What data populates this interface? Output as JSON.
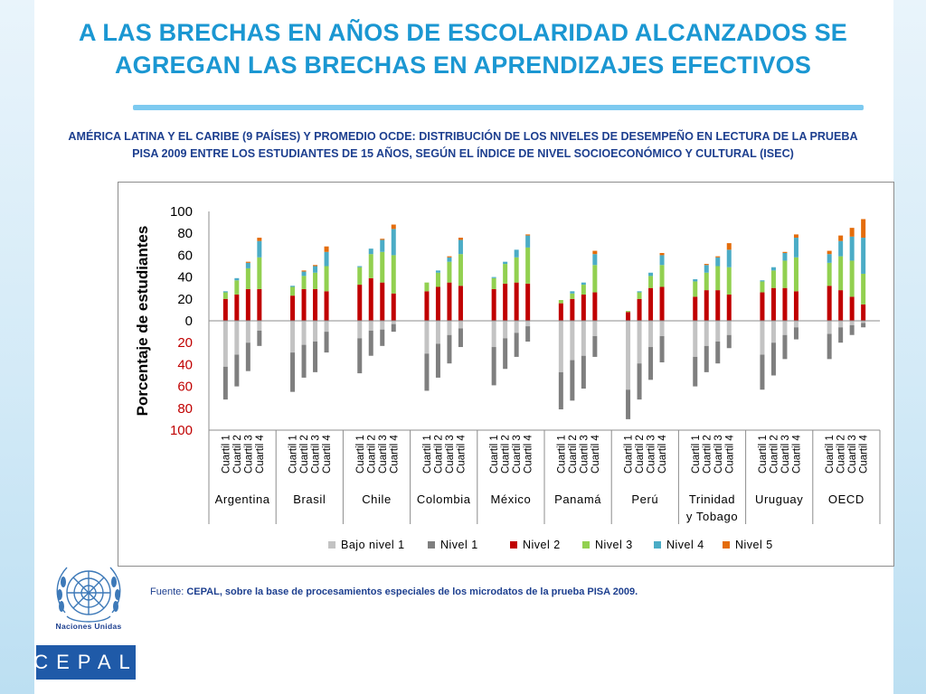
{
  "title_line1": "A LAS BRECHAS EN AÑOS DE ESCOLARIDAD ALCANZADOS SE",
  "title_line2": "AGREGAN LAS BRECHAS EN APRENDIZAJES EFECTIVOS",
  "subtitle_line1": "AMÉRICA LATINA Y EL CARIBE (9 PAÍSES) Y PROMEDIO OCDE: DISTRIBUCIÓN DE LOS NIVELES DE DESEMPEÑO EN LECTURA DE LA PRUEBA",
  "subtitle_line2": "PISA 2009 ENTRE LOS ESTUDIANTES DE 15 AÑOS, SEGÚN EL ÍNDICE DE NIVEL SOCIOECONÓMICO Y CULTURAL (ISEC)",
  "source_prefix": "Fuente: ",
  "source_text": "CEPAL, sobre la base de procesamientos especiales de los microdatos de la prueba PISA 2009.",
  "logos": {
    "un_label": "Naciones Unidas",
    "cepal_label": "CEPAL"
  },
  "chart_data": {
    "type": "bar",
    "stacked": true,
    "ylabel": "Porcentaje de estudiantes",
    "ylim": [
      -100,
      100
    ],
    "yticks": [
      100,
      80,
      60,
      40,
      20,
      0,
      20,
      40,
      60,
      80,
      100
    ],
    "quartile_labels": [
      "Cuartil 1",
      "Cuartil 2",
      "Cuartil 3",
      "Cuartil 4"
    ],
    "countries": [
      "Argentina",
      "Brasil",
      "Chile",
      "Colombia",
      "México",
      "Panamá",
      "Perú",
      "Trinidad y Tobago",
      "Uruguay",
      "OECD"
    ],
    "country_lines": [
      [
        "Argentina"
      ],
      [
        "Brasil"
      ],
      [
        "Chile"
      ],
      [
        "Colombia"
      ],
      [
        "México"
      ],
      [
        "Panamá"
      ],
      [
        "Perú"
      ],
      [
        "Trinidad",
        "y Tobago"
      ],
      [
        "Uruguay"
      ],
      [
        "OECD"
      ]
    ],
    "legend": [
      "Bajo nivel 1",
      "Nivel 1",
      "Nivel 2",
      "Nivel 3",
      "Nivel 4",
      "Nivel 5"
    ],
    "colors": [
      "#c3c3c3",
      "#7f7f7f",
      "#c00000",
      "#92d050",
      "#4bacc6",
      "#e46c0a"
    ],
    "legend_position": "bottom",
    "series": [
      {
        "name": "Bajo nivel 1",
        "values": [
          [
            -42,
            -31,
            -20,
            -9
          ],
          [
            -29,
            -22,
            -19,
            -10
          ],
          [
            -16,
            -9,
            -8,
            -3
          ],
          [
            -30,
            -21,
            -13,
            -7
          ],
          [
            -24,
            -16,
            -11,
            -5
          ],
          [
            -47,
            -36,
            -32,
            -14
          ],
          [
            -63,
            -39,
            -24,
            -14
          ],
          [
            -33,
            -23,
            -19,
            -13
          ],
          [
            -31,
            -20,
            -13,
            -6
          ],
          [
            -12,
            -6,
            -4,
            -2
          ]
        ]
      },
      {
        "name": "Nivel 1",
        "values": [
          [
            -30,
            -29,
            -26,
            -14
          ],
          [
            -36,
            -30,
            -28,
            -19
          ],
          [
            -32,
            -23,
            -15,
            -7
          ],
          [
            -34,
            -31,
            -26,
            -17
          ],
          [
            -35,
            -28,
            -22,
            -14
          ],
          [
            -34,
            -37,
            -30,
            -19
          ],
          [
            -27,
            -33,
            -30,
            -24
          ],
          [
            -27,
            -24,
            -20,
            -12
          ],
          [
            -32,
            -30,
            -22,
            -11
          ],
          [
            -23,
            -14,
            -9,
            -4
          ]
        ]
      },
      {
        "name": "Nivel 2",
        "values": [
          [
            20,
            24,
            29,
            29
          ],
          [
            23,
            29,
            29,
            27
          ],
          [
            33,
            39,
            35,
            25
          ],
          [
            27,
            31,
            35,
            32
          ],
          [
            29,
            34,
            35,
            34
          ],
          [
            16,
            20,
            24,
            26
          ],
          [
            8,
            20,
            30,
            31
          ],
          [
            22,
            28,
            28,
            24
          ],
          [
            26,
            30,
            30,
            27
          ],
          [
            32,
            28,
            22,
            15
          ]
        ]
      },
      {
        "name": "Nivel 3",
        "values": [
          [
            6,
            13,
            19,
            29
          ],
          [
            8,
            12,
            15,
            23
          ],
          [
            16,
            22,
            28,
            35
          ],
          [
            8,
            13,
            19,
            29
          ],
          [
            10,
            18,
            23,
            33
          ],
          [
            3,
            5,
            9,
            25
          ],
          [
            1,
            6,
            11,
            20
          ],
          [
            14,
            16,
            22,
            25
          ],
          [
            10,
            16,
            25,
            31
          ],
          [
            21,
            31,
            33,
            28
          ]
        ]
      },
      {
        "name": "Nivel 4",
        "values": [
          [
            1,
            2,
            5,
            15
          ],
          [
            1,
            4,
            6,
            13
          ],
          [
            1,
            5,
            11,
            24
          ],
          [
            0,
            2,
            4,
            13
          ],
          [
            1,
            2,
            7,
            11
          ],
          [
            0,
            2,
            2,
            10
          ],
          [
            0,
            1,
            3,
            9
          ],
          [
            2,
            7,
            8,
            16
          ],
          [
            1,
            3,
            7,
            18
          ],
          [
            8,
            14,
            22,
            33
          ]
        ]
      },
      {
        "name": "Nivel 5",
        "values": [
          [
            0,
            0,
            1,
            3
          ],
          [
            0,
            1,
            1,
            5
          ],
          [
            0,
            0,
            1,
            4
          ],
          [
            0,
            0,
            1,
            2
          ],
          [
            0,
            0,
            0,
            1
          ],
          [
            0,
            0,
            0,
            3
          ],
          [
            0,
            0,
            0,
            2
          ],
          [
            0,
            1,
            1,
            6
          ],
          [
            0,
            0,
            1,
            3
          ],
          [
            3,
            5,
            8,
            17
          ]
        ]
      }
    ]
  }
}
